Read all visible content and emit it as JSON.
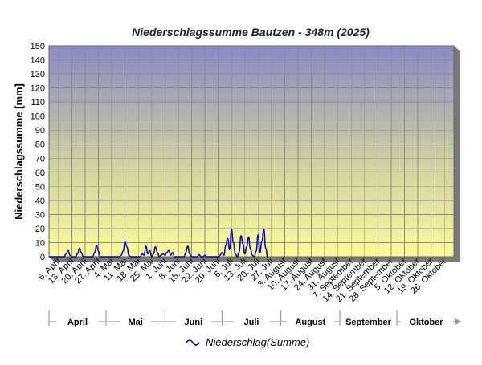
{
  "chart_data": {
    "type": "line",
    "title": "Niederschlagssumme Bautzen - 348m (2025)",
    "ylabel": "Niederschlagssumme [mm]",
    "xlabel": "",
    "ylim": [
      0,
      150
    ],
    "yticks": [
      0,
      10,
      20,
      30,
      40,
      50,
      60,
      70,
      80,
      90,
      100,
      110,
      120,
      130,
      140,
      150
    ],
    "grid": true,
    "legend_position": "bottom-center",
    "x_start_date": "2025-04-01",
    "x_end_date": "2025-10-31",
    "x_tick_labels": [
      "6. April",
      "13. April",
      "20. April",
      "27. April",
      "4. Mai",
      "11. Mai",
      "18. Mai",
      "25. Mai",
      "1. Juni",
      "8. Juni",
      "15. Juni",
      "22. Juni",
      "29. Juni",
      "6. Juli",
      "13. Juli",
      "20. Juli",
      "27. Juli",
      "3. August",
      "10. August",
      "17. August",
      "24. August",
      "31. August",
      "7. September",
      "14. September",
      "21. September",
      "28. September",
      "5. Oktober",
      "12. Oktober",
      "19. Oktober",
      "26. Oktober"
    ],
    "months": [
      "April",
      "Mai",
      "Juni",
      "Juli",
      "August",
      "September",
      "Oktober"
    ],
    "series": [
      {
        "name": "Niederschlag(Summe)",
        "color": "#0000cc",
        "points": [
          {
            "x": "2025-04-01",
            "y": 0
          },
          {
            "x": "2025-04-09",
            "y": 0
          },
          {
            "x": "2025-04-10",
            "y": 2
          },
          {
            "x": "2025-04-11",
            "y": 4.5
          },
          {
            "x": "2025-04-12",
            "y": 1
          },
          {
            "x": "2025-04-13",
            "y": 0
          },
          {
            "x": "2025-04-15",
            "y": 0
          },
          {
            "x": "2025-04-16",
            "y": 2
          },
          {
            "x": "2025-04-17",
            "y": 6
          },
          {
            "x": "2025-04-18",
            "y": 3
          },
          {
            "x": "2025-04-19",
            "y": 0
          },
          {
            "x": "2025-04-24",
            "y": 0
          },
          {
            "x": "2025-04-25",
            "y": 3
          },
          {
            "x": "2025-04-26",
            "y": 8
          },
          {
            "x": "2025-04-27",
            "y": 4
          },
          {
            "x": "2025-04-28",
            "y": 0
          },
          {
            "x": "2025-05-08",
            "y": 0
          },
          {
            "x": "2025-05-09",
            "y": 1
          },
          {
            "x": "2025-05-10",
            "y": 4
          },
          {
            "x": "2025-05-11",
            "y": 10.5
          },
          {
            "x": "2025-05-12",
            "y": 7
          },
          {
            "x": "2025-05-13",
            "y": 1
          },
          {
            "x": "2025-05-14",
            "y": 0
          },
          {
            "x": "2025-05-19",
            "y": 0
          },
          {
            "x": "2025-05-20",
            "y": 2
          },
          {
            "x": "2025-05-21",
            "y": 1
          },
          {
            "x": "2025-05-22",
            "y": 7.5
          },
          {
            "x": "2025-05-23",
            "y": 2
          },
          {
            "x": "2025-05-24",
            "y": 4.5
          },
          {
            "x": "2025-05-25",
            "y": 0
          },
          {
            "x": "2025-05-26",
            "y": 2
          },
          {
            "x": "2025-05-27",
            "y": 7
          },
          {
            "x": "2025-05-28",
            "y": 3
          },
          {
            "x": "2025-05-29",
            "y": 0
          },
          {
            "x": "2025-05-30",
            "y": 1
          },
          {
            "x": "2025-05-31",
            "y": 2
          },
          {
            "x": "2025-06-01",
            "y": 1
          },
          {
            "x": "2025-06-02",
            "y": 3
          },
          {
            "x": "2025-06-03",
            "y": 4.5
          },
          {
            "x": "2025-06-04",
            "y": 1
          },
          {
            "x": "2025-06-05",
            "y": 3
          },
          {
            "x": "2025-06-06",
            "y": 0
          },
          {
            "x": "2025-06-11",
            "y": 0
          },
          {
            "x": "2025-06-12",
            "y": 3
          },
          {
            "x": "2025-06-13",
            "y": 7.5
          },
          {
            "x": "2025-06-14",
            "y": 2
          },
          {
            "x": "2025-06-15",
            "y": 0
          },
          {
            "x": "2025-06-18",
            "y": 0
          },
          {
            "x": "2025-06-19",
            "y": 1.5
          },
          {
            "x": "2025-06-20",
            "y": 0
          },
          {
            "x": "2025-06-21",
            "y": 0
          },
          {
            "x": "2025-06-22",
            "y": 1
          },
          {
            "x": "2025-06-23",
            "y": 0
          },
          {
            "x": "2025-06-29",
            "y": 0
          },
          {
            "x": "2025-06-30",
            "y": 1
          },
          {
            "x": "2025-07-01",
            "y": 3
          },
          {
            "x": "2025-07-02",
            "y": 1
          },
          {
            "x": "2025-07-03",
            "y": 8
          },
          {
            "x": "2025-07-04",
            "y": 13
          },
          {
            "x": "2025-07-05",
            "y": 5
          },
          {
            "x": "2025-07-06",
            "y": 19.5
          },
          {
            "x": "2025-07-07",
            "y": 10
          },
          {
            "x": "2025-07-08",
            "y": 2
          },
          {
            "x": "2025-07-09",
            "y": 0
          },
          {
            "x": "2025-07-10",
            "y": 3
          },
          {
            "x": "2025-07-11",
            "y": 15
          },
          {
            "x": "2025-07-12",
            "y": 9
          },
          {
            "x": "2025-07-13",
            "y": 2
          },
          {
            "x": "2025-07-14",
            "y": 7
          },
          {
            "x": "2025-07-15",
            "y": 14
          },
          {
            "x": "2025-07-16",
            "y": 5
          },
          {
            "x": "2025-07-17",
            "y": 1
          },
          {
            "x": "2025-07-18",
            "y": 0
          },
          {
            "x": "2025-07-19",
            "y": 4
          },
          {
            "x": "2025-07-20",
            "y": 15.5
          },
          {
            "x": "2025-07-21",
            "y": 3
          },
          {
            "x": "2025-07-22",
            "y": 11
          },
          {
            "x": "2025-07-23",
            "y": 19.5
          },
          {
            "x": "2025-07-24",
            "y": 6
          },
          {
            "x": "2025-07-25",
            "y": 0
          }
        ]
      }
    ]
  }
}
